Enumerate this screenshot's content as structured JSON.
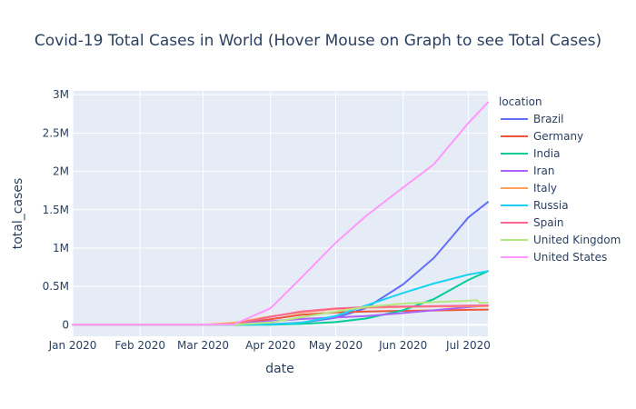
{
  "chart_data": {
    "type": "line",
    "title": "Covid-19 Total Cases in World (Hover Mouse on Graph to see Total Cases)",
    "xlabel": "date",
    "ylabel": "total_cases",
    "legend_title": "location",
    "legend_position": "right",
    "grid": true,
    "background": "#E5ECF6",
    "x_ticks": [
      "Jan 2020",
      "Feb 2020",
      "Mar 2020",
      "Apr 2020",
      "May 2020",
      "Jun 2020",
      "Jul 2020"
    ],
    "y_ticks": [
      "0",
      "0.5M",
      "1M",
      "1.5M",
      "2M",
      "2.5M",
      "3M"
    ],
    "ylim": [
      -150000,
      3050000
    ],
    "xlim": [
      "2020-01-01",
      "2020-07-10"
    ],
    "series": [
      {
        "name": "Brazil",
        "color": "#636efa",
        "points": [
          [
            "2020-01-01",
            0
          ],
          [
            "2020-03-01",
            2
          ],
          [
            "2020-03-20",
            900
          ],
          [
            "2020-04-01",
            6800
          ],
          [
            "2020-04-15",
            28000
          ],
          [
            "2020-05-01",
            92000
          ],
          [
            "2020-05-15",
            218000
          ],
          [
            "2020-06-01",
            527000
          ],
          [
            "2020-06-15",
            868000
          ],
          [
            "2020-06-20",
            1030000
          ],
          [
            "2020-07-01",
            1400000
          ],
          [
            "2020-07-10",
            1600000
          ]
        ]
      },
      {
        "name": "Germany",
        "color": "#EF553B",
        "points": [
          [
            "2020-01-01",
            0
          ],
          [
            "2020-03-01",
            100
          ],
          [
            "2020-03-15",
            5000
          ],
          [
            "2020-04-01",
            73000
          ],
          [
            "2020-04-15",
            130000
          ],
          [
            "2020-05-01",
            162000
          ],
          [
            "2020-05-15",
            173000
          ],
          [
            "2020-06-01",
            182000
          ],
          [
            "2020-06-15",
            187000
          ],
          [
            "2020-07-01",
            195000
          ],
          [
            "2020-07-10",
            198000
          ]
        ]
      },
      {
        "name": "India",
        "color": "#00cc96",
        "points": [
          [
            "2020-01-01",
            0
          ],
          [
            "2020-03-01",
            3
          ],
          [
            "2020-03-20",
            200
          ],
          [
            "2020-04-01",
            1800
          ],
          [
            "2020-04-15",
            11500
          ],
          [
            "2020-05-01",
            35000
          ],
          [
            "2020-05-15",
            82000
          ],
          [
            "2020-06-01",
            190000
          ],
          [
            "2020-06-15",
            333000
          ],
          [
            "2020-07-01",
            585000
          ],
          [
            "2020-07-10",
            700000
          ]
        ]
      },
      {
        "name": "Iran",
        "color": "#ab63fa",
        "points": [
          [
            "2020-01-01",
            0
          ],
          [
            "2020-02-20",
            5
          ],
          [
            "2020-03-01",
            1500
          ],
          [
            "2020-03-15",
            14000
          ],
          [
            "2020-04-01",
            47000
          ],
          [
            "2020-04-15",
            75000
          ],
          [
            "2020-05-01",
            95000
          ],
          [
            "2020-05-15",
            114000
          ],
          [
            "2020-06-01",
            154000
          ],
          [
            "2020-06-15",
            189000
          ],
          [
            "2020-07-01",
            230000
          ],
          [
            "2020-07-10",
            250000
          ]
        ]
      },
      {
        "name": "Italy",
        "color": "#FFA15A",
        "points": [
          [
            "2020-01-01",
            0
          ],
          [
            "2020-02-20",
            3
          ],
          [
            "2020-03-01",
            1700
          ],
          [
            "2020-03-15",
            24700
          ],
          [
            "2020-04-01",
            110000
          ],
          [
            "2020-04-15",
            162000
          ],
          [
            "2020-05-01",
            205000
          ],
          [
            "2020-05-15",
            223000
          ],
          [
            "2020-06-01",
            233000
          ],
          [
            "2020-06-15",
            237000
          ],
          [
            "2020-07-01",
            241000
          ],
          [
            "2020-07-10",
            242000
          ]
        ]
      },
      {
        "name": "Russia",
        "color": "#19d3f3",
        "points": [
          [
            "2020-01-01",
            0
          ],
          [
            "2020-03-01",
            3
          ],
          [
            "2020-03-20",
            250
          ],
          [
            "2020-04-01",
            2800
          ],
          [
            "2020-04-15",
            25000
          ],
          [
            "2020-05-01",
            115000
          ],
          [
            "2020-05-15",
            252000
          ],
          [
            "2020-06-01",
            415000
          ],
          [
            "2020-06-15",
            537000
          ],
          [
            "2020-07-01",
            655000
          ],
          [
            "2020-07-10",
            700000
          ]
        ]
      },
      {
        "name": "Spain",
        "color": "#FF6692",
        "points": [
          [
            "2020-01-01",
            0
          ],
          [
            "2020-02-25",
            2
          ],
          [
            "2020-03-01",
            80
          ],
          [
            "2020-03-15",
            7800
          ],
          [
            "2020-04-01",
            104000
          ],
          [
            "2020-04-15",
            174000
          ],
          [
            "2020-05-01",
            213000
          ],
          [
            "2020-05-15",
            230000
          ],
          [
            "2020-06-01",
            239000
          ],
          [
            "2020-06-15",
            244000
          ],
          [
            "2020-07-01",
            250000
          ],
          [
            "2020-07-10",
            253000
          ]
        ]
      },
      {
        "name": "United Kingdom",
        "color": "#B6E880",
        "points": [
          [
            "2020-01-01",
            0
          ],
          [
            "2020-03-01",
            35
          ],
          [
            "2020-03-15",
            1400
          ],
          [
            "2020-04-01",
            30000
          ],
          [
            "2020-04-15",
            98000
          ],
          [
            "2020-05-01",
            172000
          ],
          [
            "2020-05-15",
            234000
          ],
          [
            "2020-06-01",
            276000
          ],
          [
            "2020-06-15",
            296000
          ],
          [
            "2020-07-01",
            313000
          ],
          [
            "2020-07-05",
            322000
          ],
          [
            "2020-07-06",
            285000
          ],
          [
            "2020-07-10",
            288000
          ]
        ]
      },
      {
        "name": "United States",
        "color": "#FF97FF",
        "points": [
          [
            "2020-01-01",
            0
          ],
          [
            "2020-03-01",
            75
          ],
          [
            "2020-03-15",
            3500
          ],
          [
            "2020-04-01",
            215000
          ],
          [
            "2020-04-15",
            610000
          ],
          [
            "2020-05-01",
            1070000
          ],
          [
            "2020-05-15",
            1420000
          ],
          [
            "2020-06-01",
            1790000
          ],
          [
            "2020-06-15",
            2090000
          ],
          [
            "2020-07-01",
            2630000
          ],
          [
            "2020-07-10",
            2900000
          ]
        ]
      }
    ]
  }
}
